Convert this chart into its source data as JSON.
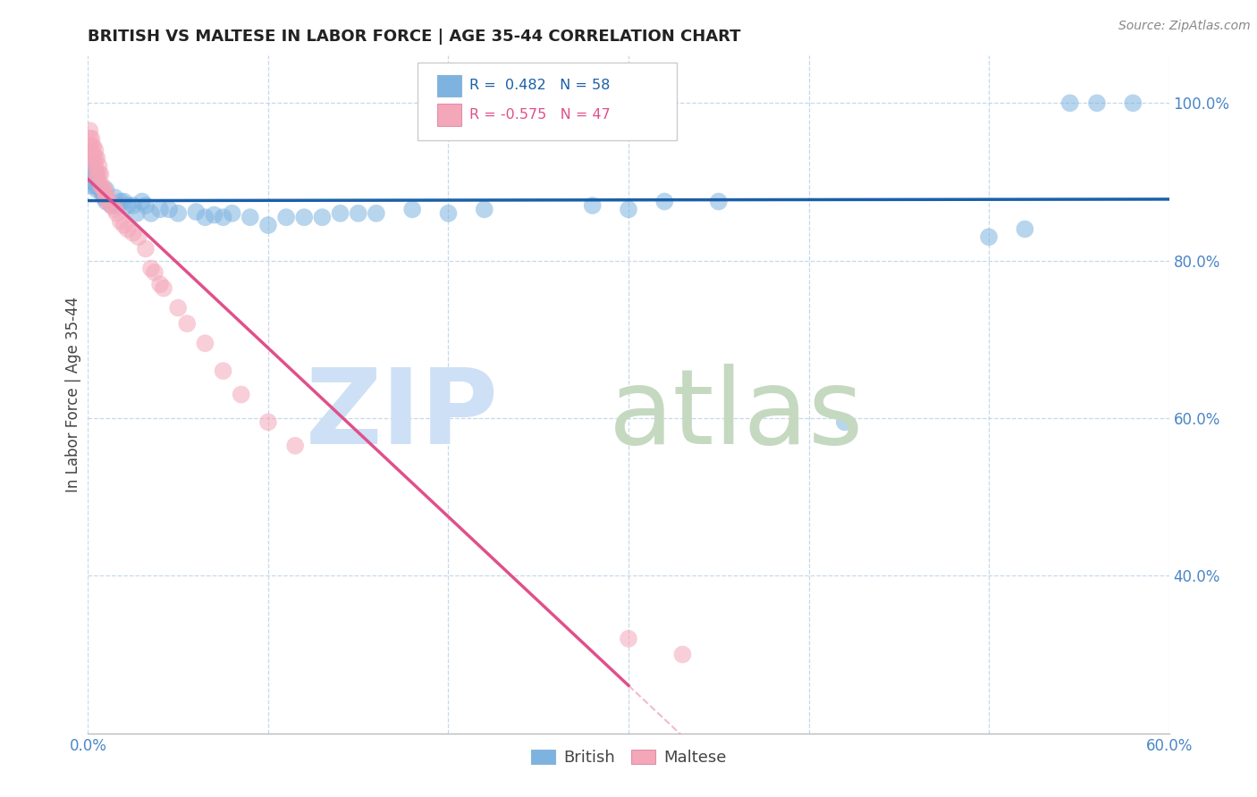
{
  "title": "BRITISH VS MALTESE IN LABOR FORCE | AGE 35-44 CORRELATION CHART",
  "source": "Source: ZipAtlas.com",
  "ylabel_label": "In Labor Force | Age 35-44",
  "xmin": 0.0,
  "xmax": 0.6,
  "ymin": 0.2,
  "ymax": 1.06,
  "british_color": "#7eb3e0",
  "maltese_color": "#f4a7b9",
  "british_line_color": "#1a5fa8",
  "maltese_line_color": "#e0508a",
  "british_R": 0.482,
  "british_N": 58,
  "maltese_R": -0.575,
  "maltese_N": 47,
  "british_scatter": [
    [
      0.001,
      0.935
    ],
    [
      0.001,
      0.92
    ],
    [
      0.002,
      0.93
    ],
    [
      0.002,
      0.91
    ],
    [
      0.002,
      0.895
    ],
    [
      0.003,
      0.915
    ],
    [
      0.003,
      0.9
    ],
    [
      0.004,
      0.91
    ],
    [
      0.004,
      0.895
    ],
    [
      0.005,
      0.905
    ],
    [
      0.005,
      0.89
    ],
    [
      0.006,
      0.895
    ],
    [
      0.007,
      0.89
    ],
    [
      0.008,
      0.885
    ],
    [
      0.009,
      0.88
    ],
    [
      0.01,
      0.89
    ],
    [
      0.01,
      0.875
    ],
    [
      0.012,
      0.875
    ],
    [
      0.013,
      0.87
    ],
    [
      0.015,
      0.88
    ],
    [
      0.016,
      0.87
    ],
    [
      0.018,
      0.875
    ],
    [
      0.02,
      0.875
    ],
    [
      0.022,
      0.87
    ],
    [
      0.025,
      0.87
    ],
    [
      0.027,
      0.86
    ],
    [
      0.03,
      0.875
    ],
    [
      0.032,
      0.87
    ],
    [
      0.035,
      0.86
    ],
    [
      0.04,
      0.865
    ],
    [
      0.045,
      0.865
    ],
    [
      0.05,
      0.86
    ],
    [
      0.06,
      0.862
    ],
    [
      0.065,
      0.855
    ],
    [
      0.07,
      0.858
    ],
    [
      0.075,
      0.855
    ],
    [
      0.08,
      0.86
    ],
    [
      0.09,
      0.855
    ],
    [
      0.1,
      0.845
    ],
    [
      0.11,
      0.855
    ],
    [
      0.12,
      0.855
    ],
    [
      0.13,
      0.855
    ],
    [
      0.14,
      0.86
    ],
    [
      0.15,
      0.86
    ],
    [
      0.16,
      0.86
    ],
    [
      0.18,
      0.865
    ],
    [
      0.2,
      0.86
    ],
    [
      0.22,
      0.865
    ],
    [
      0.28,
      0.87
    ],
    [
      0.3,
      0.865
    ],
    [
      0.32,
      0.875
    ],
    [
      0.35,
      0.875
    ],
    [
      0.42,
      0.595
    ],
    [
      0.5,
      0.83
    ],
    [
      0.52,
      0.84
    ],
    [
      0.545,
      1.0
    ],
    [
      0.56,
      1.0
    ],
    [
      0.58,
      1.0
    ]
  ],
  "maltese_scatter": [
    [
      0.001,
      0.965
    ],
    [
      0.001,
      0.955
    ],
    [
      0.001,
      0.945
    ],
    [
      0.002,
      0.955
    ],
    [
      0.002,
      0.945
    ],
    [
      0.002,
      0.935
    ],
    [
      0.003,
      0.945
    ],
    [
      0.003,
      0.935
    ],
    [
      0.003,
      0.925
    ],
    [
      0.004,
      0.94
    ],
    [
      0.004,
      0.93
    ],
    [
      0.004,
      0.92
    ],
    [
      0.005,
      0.93
    ],
    [
      0.005,
      0.91
    ],
    [
      0.005,
      0.905
    ],
    [
      0.006,
      0.92
    ],
    [
      0.006,
      0.91
    ],
    [
      0.007,
      0.91
    ],
    [
      0.007,
      0.895
    ],
    [
      0.008,
      0.895
    ],
    [
      0.009,
      0.89
    ],
    [
      0.01,
      0.885
    ],
    [
      0.01,
      0.88
    ],
    [
      0.011,
      0.875
    ],
    [
      0.012,
      0.875
    ],
    [
      0.013,
      0.87
    ],
    [
      0.015,
      0.865
    ],
    [
      0.016,
      0.86
    ],
    [
      0.018,
      0.85
    ],
    [
      0.02,
      0.845
    ],
    [
      0.022,
      0.84
    ],
    [
      0.025,
      0.835
    ],
    [
      0.028,
      0.83
    ],
    [
      0.032,
      0.815
    ],
    [
      0.035,
      0.79
    ],
    [
      0.037,
      0.785
    ],
    [
      0.04,
      0.77
    ],
    [
      0.042,
      0.765
    ],
    [
      0.05,
      0.74
    ],
    [
      0.055,
      0.72
    ],
    [
      0.065,
      0.695
    ],
    [
      0.075,
      0.66
    ],
    [
      0.085,
      0.63
    ],
    [
      0.1,
      0.595
    ],
    [
      0.115,
      0.565
    ],
    [
      0.3,
      0.32
    ],
    [
      0.33,
      0.3
    ]
  ],
  "maltese_line_xstart": 0.0,
  "maltese_line_xend": 0.3,
  "maltese_line_solid_xend": 0.3,
  "maltese_line_dash_xend": 0.5
}
